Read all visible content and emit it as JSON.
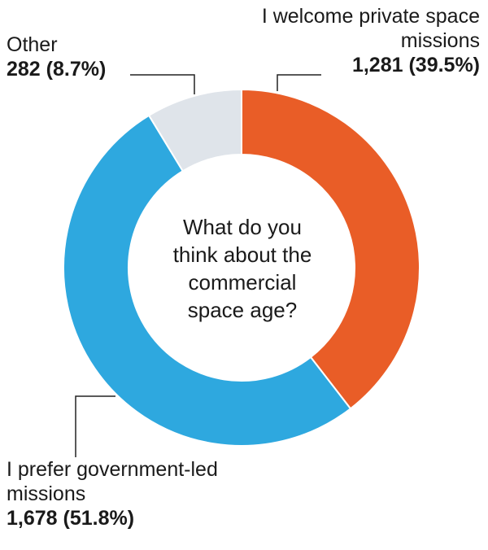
{
  "chart_data": {
    "type": "pie",
    "title": "What do you think about the commercial space age?",
    "slices": [
      {
        "label": "I welcome private space missions",
        "value": 1281,
        "value_text": "1,281 (39.5%)",
        "percent": 39.5,
        "color": "#e95d27"
      },
      {
        "label": "I prefer government-led missions",
        "value": 1678,
        "value_text": "1,678 (51.8%)",
        "percent": 51.8,
        "color": "#2ea8df"
      },
      {
        "label": "Other",
        "value": 282,
        "value_text": "282 (8.7%)",
        "percent": 8.7,
        "color": "#dfe4ea"
      }
    ],
    "donut": true,
    "legend": "none"
  }
}
